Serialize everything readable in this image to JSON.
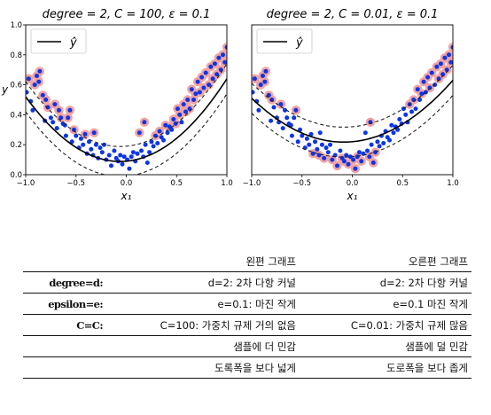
{
  "chart_data": [
    {
      "type": "scatter",
      "title": "degree = 2, C = 100, ε = 0.1",
      "xlabel": "x₁",
      "ylabel": "y",
      "xlim": [
        -1.0,
        1.0
      ],
      "ylim": [
        0.0,
        1.0
      ],
      "xticks": [
        "−1.0",
        "−0.5",
        "0.0",
        "0.5",
        "1.0"
      ],
      "yticks": [
        "0.0",
        "0.2",
        "0.4",
        "0.6",
        "0.8",
        "1.0"
      ],
      "legend": "top-left",
      "legend_label": "ŷ",
      "model": {
        "a": 0.49,
        "b": 0.06,
        "c": 0.09,
        "epsilon": 0.1
      },
      "points": [
        [
          -0.99,
          0.55
        ],
        [
          -0.97,
          0.64
        ],
        [
          -0.95,
          0.49
        ],
        [
          -0.93,
          0.43
        ],
        [
          -0.91,
          0.6
        ],
        [
          -0.89,
          0.66
        ],
        [
          -0.87,
          0.62
        ],
        [
          -0.86,
          0.69
        ],
        [
          -0.83,
          0.53
        ],
        [
          -0.81,
          0.36
        ],
        [
          -0.8,
          0.5
        ],
        [
          -0.78,
          0.45
        ],
        [
          -0.75,
          0.38
        ],
        [
          -0.73,
          0.35
        ],
        [
          -0.71,
          0.47
        ],
        [
          -0.69,
          0.31
        ],
        [
          -0.67,
          0.43
        ],
        [
          -0.65,
          0.38
        ],
        [
          -0.63,
          0.34
        ],
        [
          -0.61,
          0.33
        ],
        [
          -0.6,
          0.26
        ],
        [
          -0.58,
          0.38
        ],
        [
          -0.56,
          0.43
        ],
        [
          -0.54,
          0.22
        ],
        [
          -0.52,
          0.3
        ],
        [
          -0.5,
          0.26
        ],
        [
          -0.47,
          0.18
        ],
        [
          -0.45,
          0.24
        ],
        [
          -0.43,
          0.2
        ],
        [
          -0.41,
          0.27
        ],
        [
          -0.39,
          0.14
        ],
        [
          -0.37,
          0.22
        ],
        [
          -0.35,
          0.17
        ],
        [
          -0.33,
          0.13
        ],
        [
          -0.3,
          0.2
        ],
        [
          -0.28,
          0.11
        ],
        [
          -0.26,
          0.18
        ],
        [
          -0.24,
          0.15
        ],
        [
          -0.22,
          0.2
        ],
        [
          -0.2,
          0.1
        ],
        [
          -0.17,
          0.13
        ],
        [
          -0.15,
          0.06
        ],
        [
          -0.12,
          0.16
        ],
        [
          -0.1,
          0.11
        ],
        [
          -0.08,
          0.09
        ],
        [
          -0.06,
          0.13
        ],
        [
          -0.04,
          0.07
        ],
        [
          -0.02,
          0.12
        ],
        [
          0.01,
          0.1
        ],
        [
          0.03,
          0.04
        ],
        [
          0.05,
          0.12
        ],
        [
          0.07,
          0.15
        ],
        [
          0.09,
          0.09
        ],
        [
          0.11,
          0.14
        ],
        [
          0.13,
          0.28
        ],
        [
          0.15,
          0.16
        ],
        [
          0.17,
          0.12
        ],
        [
          0.19,
          0.2
        ],
        [
          0.21,
          0.08
        ],
        [
          0.23,
          0.15
        ],
        [
          0.25,
          0.22
        ],
        [
          0.27,
          0.19
        ],
        [
          0.29,
          0.26
        ],
        [
          0.31,
          0.21
        ],
        [
          0.33,
          0.29
        ],
        [
          0.35,
          0.25
        ],
        [
          0.37,
          0.23
        ],
        [
          0.39,
          0.33
        ],
        [
          0.41,
          0.28
        ],
        [
          0.43,
          0.32
        ],
        [
          0.45,
          0.3
        ],
        [
          0.47,
          0.37
        ],
        [
          0.49,
          0.34
        ],
        [
          0.51,
          0.44
        ],
        [
          0.53,
          0.4
        ],
        [
          0.55,
          0.35
        ],
        [
          0.57,
          0.47
        ],
        [
          0.59,
          0.42
        ],
        [
          0.61,
          0.5
        ],
        [
          0.63,
          0.44
        ],
        [
          0.65,
          0.57
        ],
        [
          0.67,
          0.5
        ],
        [
          0.69,
          0.54
        ],
        [
          0.71,
          0.62
        ],
        [
          0.73,
          0.55
        ],
        [
          0.75,
          0.65
        ],
        [
          0.77,
          0.58
        ],
        [
          0.79,
          0.68
        ],
        [
          0.82,
          0.6
        ],
        [
          0.84,
          0.72
        ],
        [
          0.86,
          0.64
        ],
        [
          0.88,
          0.74
        ],
        [
          0.9,
          0.67
        ],
        [
          0.92,
          0.78
        ],
        [
          0.94,
          0.7
        ],
        [
          0.96,
          0.8
        ],
        [
          0.98,
          0.75
        ],
        [
          1.0,
          0.85
        ],
        [
          -0.32,
          0.28
        ],
        [
          0.18,
          0.35
        ]
      ]
    },
    {
      "type": "scatter",
      "title": "degree = 2, C = 0.01, ε = 0.1",
      "xlabel": "x₁",
      "ylabel": "",
      "xlim": [
        -1.0,
        1.0
      ],
      "ylim": [
        0.0,
        1.0
      ],
      "xticks": [
        "−1.0",
        "−0.5",
        "0.0",
        "0.5",
        "1.0"
      ],
      "yticks": [],
      "legend": "top-left",
      "legend_label": "ŷ",
      "model": {
        "a": 0.35,
        "b": 0.06,
        "c": 0.22,
        "epsilon": 0.1
      },
      "points": [
        [
          -0.99,
          0.55
        ],
        [
          -0.97,
          0.64
        ],
        [
          -0.95,
          0.49
        ],
        [
          -0.93,
          0.43
        ],
        [
          -0.91,
          0.6
        ],
        [
          -0.89,
          0.66
        ],
        [
          -0.87,
          0.62
        ],
        [
          -0.86,
          0.69
        ],
        [
          -0.83,
          0.53
        ],
        [
          -0.81,
          0.36
        ],
        [
          -0.8,
          0.5
        ],
        [
          -0.78,
          0.45
        ],
        [
          -0.75,
          0.38
        ],
        [
          -0.73,
          0.35
        ],
        [
          -0.71,
          0.47
        ],
        [
          -0.69,
          0.31
        ],
        [
          -0.67,
          0.43
        ],
        [
          -0.65,
          0.38
        ],
        [
          -0.63,
          0.34
        ],
        [
          -0.61,
          0.33
        ],
        [
          -0.6,
          0.26
        ],
        [
          -0.58,
          0.38
        ],
        [
          -0.56,
          0.43
        ],
        [
          -0.54,
          0.22
        ],
        [
          -0.52,
          0.3
        ],
        [
          -0.5,
          0.26
        ],
        [
          -0.47,
          0.18
        ],
        [
          -0.45,
          0.24
        ],
        [
          -0.43,
          0.2
        ],
        [
          -0.41,
          0.27
        ],
        [
          -0.39,
          0.14
        ],
        [
          -0.37,
          0.22
        ],
        [
          -0.35,
          0.17
        ],
        [
          -0.33,
          0.13
        ],
        [
          -0.3,
          0.2
        ],
        [
          -0.28,
          0.11
        ],
        [
          -0.26,
          0.18
        ],
        [
          -0.24,
          0.15
        ],
        [
          -0.22,
          0.2
        ],
        [
          -0.2,
          0.1
        ],
        [
          -0.17,
          0.13
        ],
        [
          -0.15,
          0.06
        ],
        [
          -0.12,
          0.16
        ],
        [
          -0.1,
          0.11
        ],
        [
          -0.08,
          0.09
        ],
        [
          -0.06,
          0.13
        ],
        [
          -0.04,
          0.07
        ],
        [
          -0.02,
          0.12
        ],
        [
          0.01,
          0.1
        ],
        [
          0.03,
          0.04
        ],
        [
          0.05,
          0.12
        ],
        [
          0.07,
          0.15
        ],
        [
          0.09,
          0.09
        ],
        [
          0.11,
          0.14
        ],
        [
          0.13,
          0.28
        ],
        [
          0.15,
          0.16
        ],
        [
          0.17,
          0.12
        ],
        [
          0.19,
          0.2
        ],
        [
          0.21,
          0.08
        ],
        [
          0.23,
          0.15
        ],
        [
          0.25,
          0.22
        ],
        [
          0.27,
          0.19
        ],
        [
          0.29,
          0.26
        ],
        [
          0.31,
          0.21
        ],
        [
          0.33,
          0.29
        ],
        [
          0.35,
          0.25
        ],
        [
          0.37,
          0.23
        ],
        [
          0.39,
          0.33
        ],
        [
          0.41,
          0.28
        ],
        [
          0.43,
          0.32
        ],
        [
          0.45,
          0.3
        ],
        [
          0.47,
          0.37
        ],
        [
          0.49,
          0.34
        ],
        [
          0.51,
          0.44
        ],
        [
          0.53,
          0.4
        ],
        [
          0.55,
          0.35
        ],
        [
          0.57,
          0.47
        ],
        [
          0.59,
          0.42
        ],
        [
          0.61,
          0.5
        ],
        [
          0.63,
          0.44
        ],
        [
          0.65,
          0.57
        ],
        [
          0.67,
          0.5
        ],
        [
          0.69,
          0.54
        ],
        [
          0.71,
          0.62
        ],
        [
          0.73,
          0.55
        ],
        [
          0.75,
          0.65
        ],
        [
          0.77,
          0.58
        ],
        [
          0.79,
          0.68
        ],
        [
          0.82,
          0.6
        ],
        [
          0.84,
          0.72
        ],
        [
          0.86,
          0.64
        ],
        [
          0.88,
          0.74
        ],
        [
          0.9,
          0.67
        ],
        [
          0.92,
          0.78
        ],
        [
          0.94,
          0.7
        ],
        [
          0.96,
          0.8
        ],
        [
          0.98,
          0.75
        ],
        [
          1.0,
          0.85
        ],
        [
          -0.32,
          0.28
        ],
        [
          0.18,
          0.35
        ]
      ]
    }
  ],
  "colors": {
    "point": "#0b35e8",
    "support_vector_ring": "#f2a3a3",
    "prediction": "#000000"
  },
  "table": {
    "headers": [
      "",
      "왼편 그래프",
      "오른편 그래프"
    ],
    "rows": [
      [
        "degree=d:",
        "d=2: 2차 다항 커널",
        "d=2: 2차 다항 커널"
      ],
      [
        "epsilon=e:",
        "e=0.1: 마진 작게",
        "e=0.1 마진 작게"
      ],
      [
        "C=C:",
        "C=100: 가중치 규제 거의 없음",
        "C=0.01: 가중치 규제 많음"
      ],
      [
        "",
        "샘플에 더 민감",
        "샘플에 덜 민감"
      ],
      [
        "",
        "도록폭을 보다 넓게",
        "도로폭을 보다 좁게"
      ]
    ]
  }
}
